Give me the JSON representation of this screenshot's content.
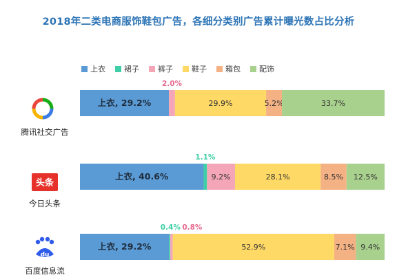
{
  "chart_data": {
    "type": "bar",
    "orientation": "horizontal",
    "stacked": "100%",
    "title": "2018年二类电商服饰鞋包广告，各细分类别广告累计曝光数占比分析",
    "categories": [
      "腾讯社交广告",
      "今日头条",
      "百度信息流"
    ],
    "series": [
      {
        "name": "上衣",
        "values": [
          29.2,
          40.6,
          29.2
        ]
      },
      {
        "name": "裙子",
        "values": [
          0,
          1.1,
          0.4
        ]
      },
      {
        "name": "裤子",
        "values": [
          2.0,
          9.2,
          0.8
        ]
      },
      {
        "name": "鞋子",
        "values": [
          29.9,
          28.1,
          52.9
        ]
      },
      {
        "name": "箱包",
        "values": [
          5.2,
          8.5,
          7.1
        ]
      },
      {
        "name": "配饰",
        "values": [
          33.7,
          12.5,
          9.4
        ]
      }
    ],
    "data_labels": [
      [
        "上衣, 29.2%",
        "",
        "2.0%",
        "29.9%",
        "5.2%",
        "33.7%"
      ],
      [
        "上衣, 40.6%",
        "1.1%",
        "9.2%",
        "28.1%",
        "8.5%",
        "12.5%"
      ],
      [
        "上衣, 29.2%",
        "0.4%",
        "0.8%",
        "52.9%",
        "7.1%",
        "9.4%"
      ]
    ],
    "legend_position": "top",
    "grid": false
  },
  "colors": {
    "title": "#2e75b6",
    "series": [
      "#5b9bd5",
      "#3fcfa6",
      "#f4a6b8",
      "#ffd966",
      "#f4b183",
      "#a9d18e"
    ]
  },
  "icons": [
    "tencent-social-ads-logo",
    "toutiao-logo",
    "baidu-feed-logo"
  ],
  "logo_texts": [
    "头条",
    "du"
  ]
}
